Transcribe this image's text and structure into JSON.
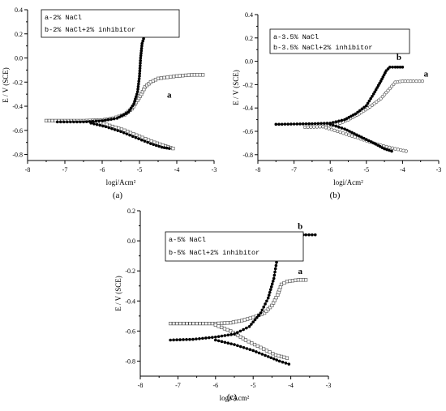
{
  "chart_data": [
    {
      "type": "line",
      "panel_label": "(a)",
      "xlabel": "logi/Acm²",
      "ylabel": "E / V (SCE)",
      "xlim": [
        -8,
        -3
      ],
      "ylim": [
        -0.85,
        0.4
      ],
      "xticks": [
        -8,
        -7,
        -6,
        -5,
        -4,
        -3
      ],
      "yticks": [
        -0.8,
        -0.6,
        -0.4,
        -0.2,
        0.0,
        0.2,
        0.4
      ],
      "ytick_labels": [
        "-0.8",
        "-0.6",
        "-0.4",
        "-0.2",
        "0.0",
        "0.2",
        "0.4"
      ],
      "grid": false,
      "legend_position": "top-left",
      "legend": [
        "a-2% NaCl",
        "b-2% NaCl+2% inhibitor"
      ],
      "annotations": [
        {
          "text": "b",
          "x": -4.75,
          "y": 0.28
        },
        {
          "text": "a",
          "x": -4.2,
          "y": -0.33
        }
      ],
      "series": [
        {
          "label": "a",
          "marker": "open-square",
          "anodic": [
            [
              -7.5,
              -0.52
            ],
            [
              -6.5,
              -0.52
            ],
            [
              -6.0,
              -0.515
            ],
            [
              -5.7,
              -0.5
            ],
            [
              -5.4,
              -0.47
            ],
            [
              -5.2,
              -0.42
            ],
            [
              -5.05,
              -0.35
            ],
            [
              -4.95,
              -0.3
            ],
            [
              -4.85,
              -0.24
            ],
            [
              -4.7,
              -0.2
            ],
            [
              -4.5,
              -0.17
            ],
            [
              -4.0,
              -0.15
            ],
            [
              -3.6,
              -0.14
            ],
            [
              -3.3,
              -0.14
            ]
          ],
          "cathodic": [
            [
              -6.2,
              -0.52
            ],
            [
              -5.8,
              -0.56
            ],
            [
              -5.4,
              -0.6
            ],
            [
              -5.0,
              -0.65
            ],
            [
              -4.6,
              -0.7
            ],
            [
              -4.3,
              -0.73
            ],
            [
              -4.1,
              -0.75
            ]
          ]
        },
        {
          "label": "b",
          "marker": "filled-circle",
          "anodic": [
            [
              -7.2,
              -0.53
            ],
            [
              -6.5,
              -0.53
            ],
            [
              -6.0,
              -0.52
            ],
            [
              -5.6,
              -0.5
            ],
            [
              -5.3,
              -0.45
            ],
            [
              -5.15,
              -0.38
            ],
            [
              -5.05,
              -0.28
            ],
            [
              -5.0,
              -0.15
            ],
            [
              -4.97,
              0.0
            ],
            [
              -4.93,
              0.12
            ],
            [
              -4.85,
              0.2
            ],
            [
              -4.7,
              0.26
            ],
            [
              -4.5,
              0.29
            ],
            [
              -4.2,
              0.3
            ],
            [
              -4.0,
              0.3
            ]
          ],
          "cathodic": [
            [
              -6.3,
              -0.54
            ],
            [
              -5.9,
              -0.57
            ],
            [
              -5.5,
              -0.61
            ],
            [
              -5.1,
              -0.66
            ],
            [
              -4.7,
              -0.71
            ],
            [
              -4.4,
              -0.74
            ],
            [
              -4.2,
              -0.75
            ]
          ]
        }
      ]
    },
    {
      "type": "line",
      "panel_label": "(b)",
      "xlabel": "logi/Acm²",
      "ylabel": "E / V (SCE)",
      "xlim": [
        -8,
        -3
      ],
      "ylim": [
        -0.85,
        0.4
      ],
      "xticks": [
        -8,
        -7,
        -6,
        -5,
        -4,
        -3
      ],
      "yticks": [
        -0.8,
        -0.6,
        -0.4,
        -0.2,
        0.0,
        0.2,
        0.4
      ],
      "ytick_labels": [
        "-0.8",
        "-0.6",
        "-0.4",
        "-0.2",
        "0.0",
        "0.2",
        "0.4"
      ],
      "grid": false,
      "legend_position": "top-left",
      "legend": [
        "a-3.5% NaCl",
        "b-3.5% NaCl+2% inhibitor"
      ],
      "annotations": [
        {
          "text": "b",
          "x": -4.1,
          "y": 0.01
        },
        {
          "text": "a",
          "x": -3.35,
          "y": -0.13
        }
      ],
      "series": [
        {
          "label": "a",
          "marker": "open-circle",
          "anodic": [
            [
              -6.7,
              -0.565
            ],
            [
              -6.2,
              -0.56
            ],
            [
              -5.8,
              -0.54
            ],
            [
              -5.5,
              -0.5
            ],
            [
              -5.2,
              -0.45
            ],
            [
              -4.9,
              -0.39
            ],
            [
              -4.6,
              -0.32
            ],
            [
              -4.4,
              -0.25
            ],
            [
              -4.2,
              -0.18
            ],
            [
              -4.0,
              -0.17
            ],
            [
              -3.7,
              -0.17
            ],
            [
              -3.45,
              -0.17
            ]
          ],
          "cathodic": [
            [
              -6.2,
              -0.56
            ],
            [
              -5.8,
              -0.6
            ],
            [
              -5.4,
              -0.64
            ],
            [
              -5.0,
              -0.68
            ],
            [
              -4.6,
              -0.72
            ],
            [
              -4.2,
              -0.75
            ],
            [
              -3.9,
              -0.77
            ]
          ]
        },
        {
          "label": "b",
          "marker": "filled-circle",
          "anodic": [
            [
              -7.5,
              -0.54
            ],
            [
              -6.5,
              -0.535
            ],
            [
              -6.0,
              -0.53
            ],
            [
              -5.6,
              -0.5
            ],
            [
              -5.3,
              -0.45
            ],
            [
              -5.0,
              -0.38
            ],
            [
              -4.8,
              -0.28
            ],
            [
              -4.6,
              -0.17
            ],
            [
              -4.45,
              -0.08
            ],
            [
              -4.35,
              -0.05
            ],
            [
              -4.2,
              -0.05
            ],
            [
              -4.0,
              -0.05
            ]
          ],
          "cathodic": [
            [
              -6.0,
              -0.54
            ],
            [
              -5.6,
              -0.58
            ],
            [
              -5.2,
              -0.64
            ],
            [
              -4.8,
              -0.7
            ],
            [
              -4.5,
              -0.75
            ],
            [
              -4.3,
              -0.77
            ]
          ]
        }
      ]
    },
    {
      "type": "line",
      "panel_label": "(c)",
      "xlabel": "logi/Acm²",
      "ylabel": "E / V (SCE)",
      "xlim": [
        -8,
        -3
      ],
      "ylim": [
        -0.9,
        0.2
      ],
      "xticks": [
        -8,
        -7,
        -6,
        -5,
        -4,
        -3
      ],
      "yticks": [
        -0.8,
        -0.6,
        -0.4,
        -0.2,
        0.0,
        0.2
      ],
      "ytick_labels": [
        "-0.8",
        "-0.6",
        "-0.4",
        "-0.2",
        "0.0",
        "0.2"
      ],
      "grid": false,
      "legend_position": "top-left",
      "legend": [
        "a-5% NaCl",
        "b-5% NaCl+2% inhibitor"
      ],
      "annotations": [
        {
          "text": "b",
          "x": -3.75,
          "y": 0.08
        },
        {
          "text": "a",
          "x": -3.75,
          "y": -0.22
        }
      ],
      "series": [
        {
          "label": "a",
          "marker": "open-square",
          "anodic": [
            [
              -7.2,
              -0.55
            ],
            [
              -6.5,
              -0.55
            ],
            [
              -6.0,
              -0.55
            ],
            [
              -5.6,
              -0.545
            ],
            [
              -5.3,
              -0.53
            ],
            [
              -5.0,
              -0.51
            ],
            [
              -4.7,
              -0.48
            ],
            [
              -4.5,
              -0.43
            ],
            [
              -4.35,
              -0.36
            ],
            [
              -4.25,
              -0.29
            ],
            [
              -4.1,
              -0.27
            ],
            [
              -3.8,
              -0.26
            ],
            [
              -3.6,
              -0.26
            ]
          ],
          "cathodic": [
            [
              -6.0,
              -0.56
            ],
            [
              -5.6,
              -0.6
            ],
            [
              -5.2,
              -0.66
            ],
            [
              -4.8,
              -0.71
            ],
            [
              -4.4,
              -0.76
            ],
            [
              -4.1,
              -0.78
            ]
          ]
        },
        {
          "label": "b",
          "marker": "filled-circle",
          "anodic": [
            [
              -7.2,
              -0.66
            ],
            [
              -6.6,
              -0.655
            ],
            [
              -6.0,
              -0.64
            ],
            [
              -5.5,
              -0.62
            ],
            [
              -5.1,
              -0.57
            ],
            [
              -4.8,
              -0.48
            ],
            [
              -4.6,
              -0.38
            ],
            [
              -4.45,
              -0.25
            ],
            [
              -4.35,
              -0.1
            ],
            [
              -4.28,
              0.02
            ],
            [
              -4.2,
              0.04
            ],
            [
              -3.9,
              0.04
            ],
            [
              -3.6,
              0.04
            ],
            [
              -3.35,
              0.04
            ]
          ],
          "cathodic": [
            [
              -6.0,
              -0.66
            ],
            [
              -5.5,
              -0.69
            ],
            [
              -5.0,
              -0.73
            ],
            [
              -4.6,
              -0.77
            ],
            [
              -4.3,
              -0.8
            ],
            [
              -4.05,
              -0.82
            ]
          ]
        }
      ]
    }
  ]
}
